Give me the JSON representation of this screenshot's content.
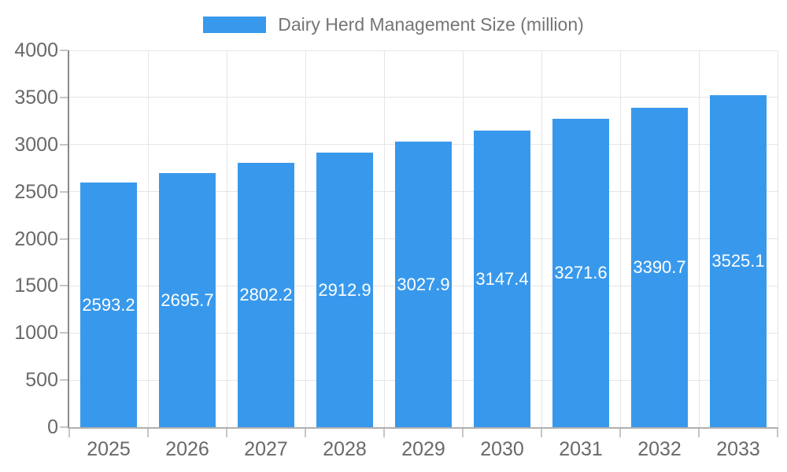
{
  "chart_data": {
    "type": "bar",
    "title": "Dairy Herd Management Size (million)",
    "legend": [
      "Dairy Herd Management Size (million)"
    ],
    "legend_position": "top",
    "categories": [
      "2025",
      "2026",
      "2027",
      "2028",
      "2029",
      "2030",
      "2031",
      "2032",
      "2033"
    ],
    "series": [
      {
        "name": "Dairy Herd Management Size (million)",
        "values": [
          2593.2,
          2695.7,
          2802.2,
          2912.9,
          3027.9,
          3147.4,
          3271.6,
          3390.7,
          3525.1
        ]
      }
    ],
    "values": [
      2593.2,
      2695.7,
      2802.2,
      2912.9,
      3027.9,
      3147.4,
      3271.6,
      3390.7,
      3525.1
    ],
    "data_label_texts": [
      "2593.2",
      "2695.7",
      "2802.2",
      "2912.9",
      "3027.9",
      "3147.4",
      "3271.6",
      "3390.7",
      "3525.1"
    ],
    "xlabel": "",
    "ylabel": "",
    "ylim": [
      0,
      4000
    ],
    "yticks": [
      0,
      500,
      1000,
      1500,
      2000,
      2500,
      3000,
      3500,
      4000
    ],
    "ytick_labels": [
      "0",
      "500",
      "1000",
      "1500",
      "2000",
      "2500",
      "3000",
      "3500",
      "4000"
    ],
    "grid": true,
    "data_labels_position": "inside-center"
  },
  "colors": {
    "bar": "#3899ec",
    "grid": "#e6e6e6",
    "axis_line": "#8a8a8a",
    "baseline": "#b0b0b0",
    "tick": "#c6c6c6",
    "tick_label": "#696969",
    "legend_label": "#757575",
    "data_label": "#ffffff",
    "background": "#ffffff"
  }
}
